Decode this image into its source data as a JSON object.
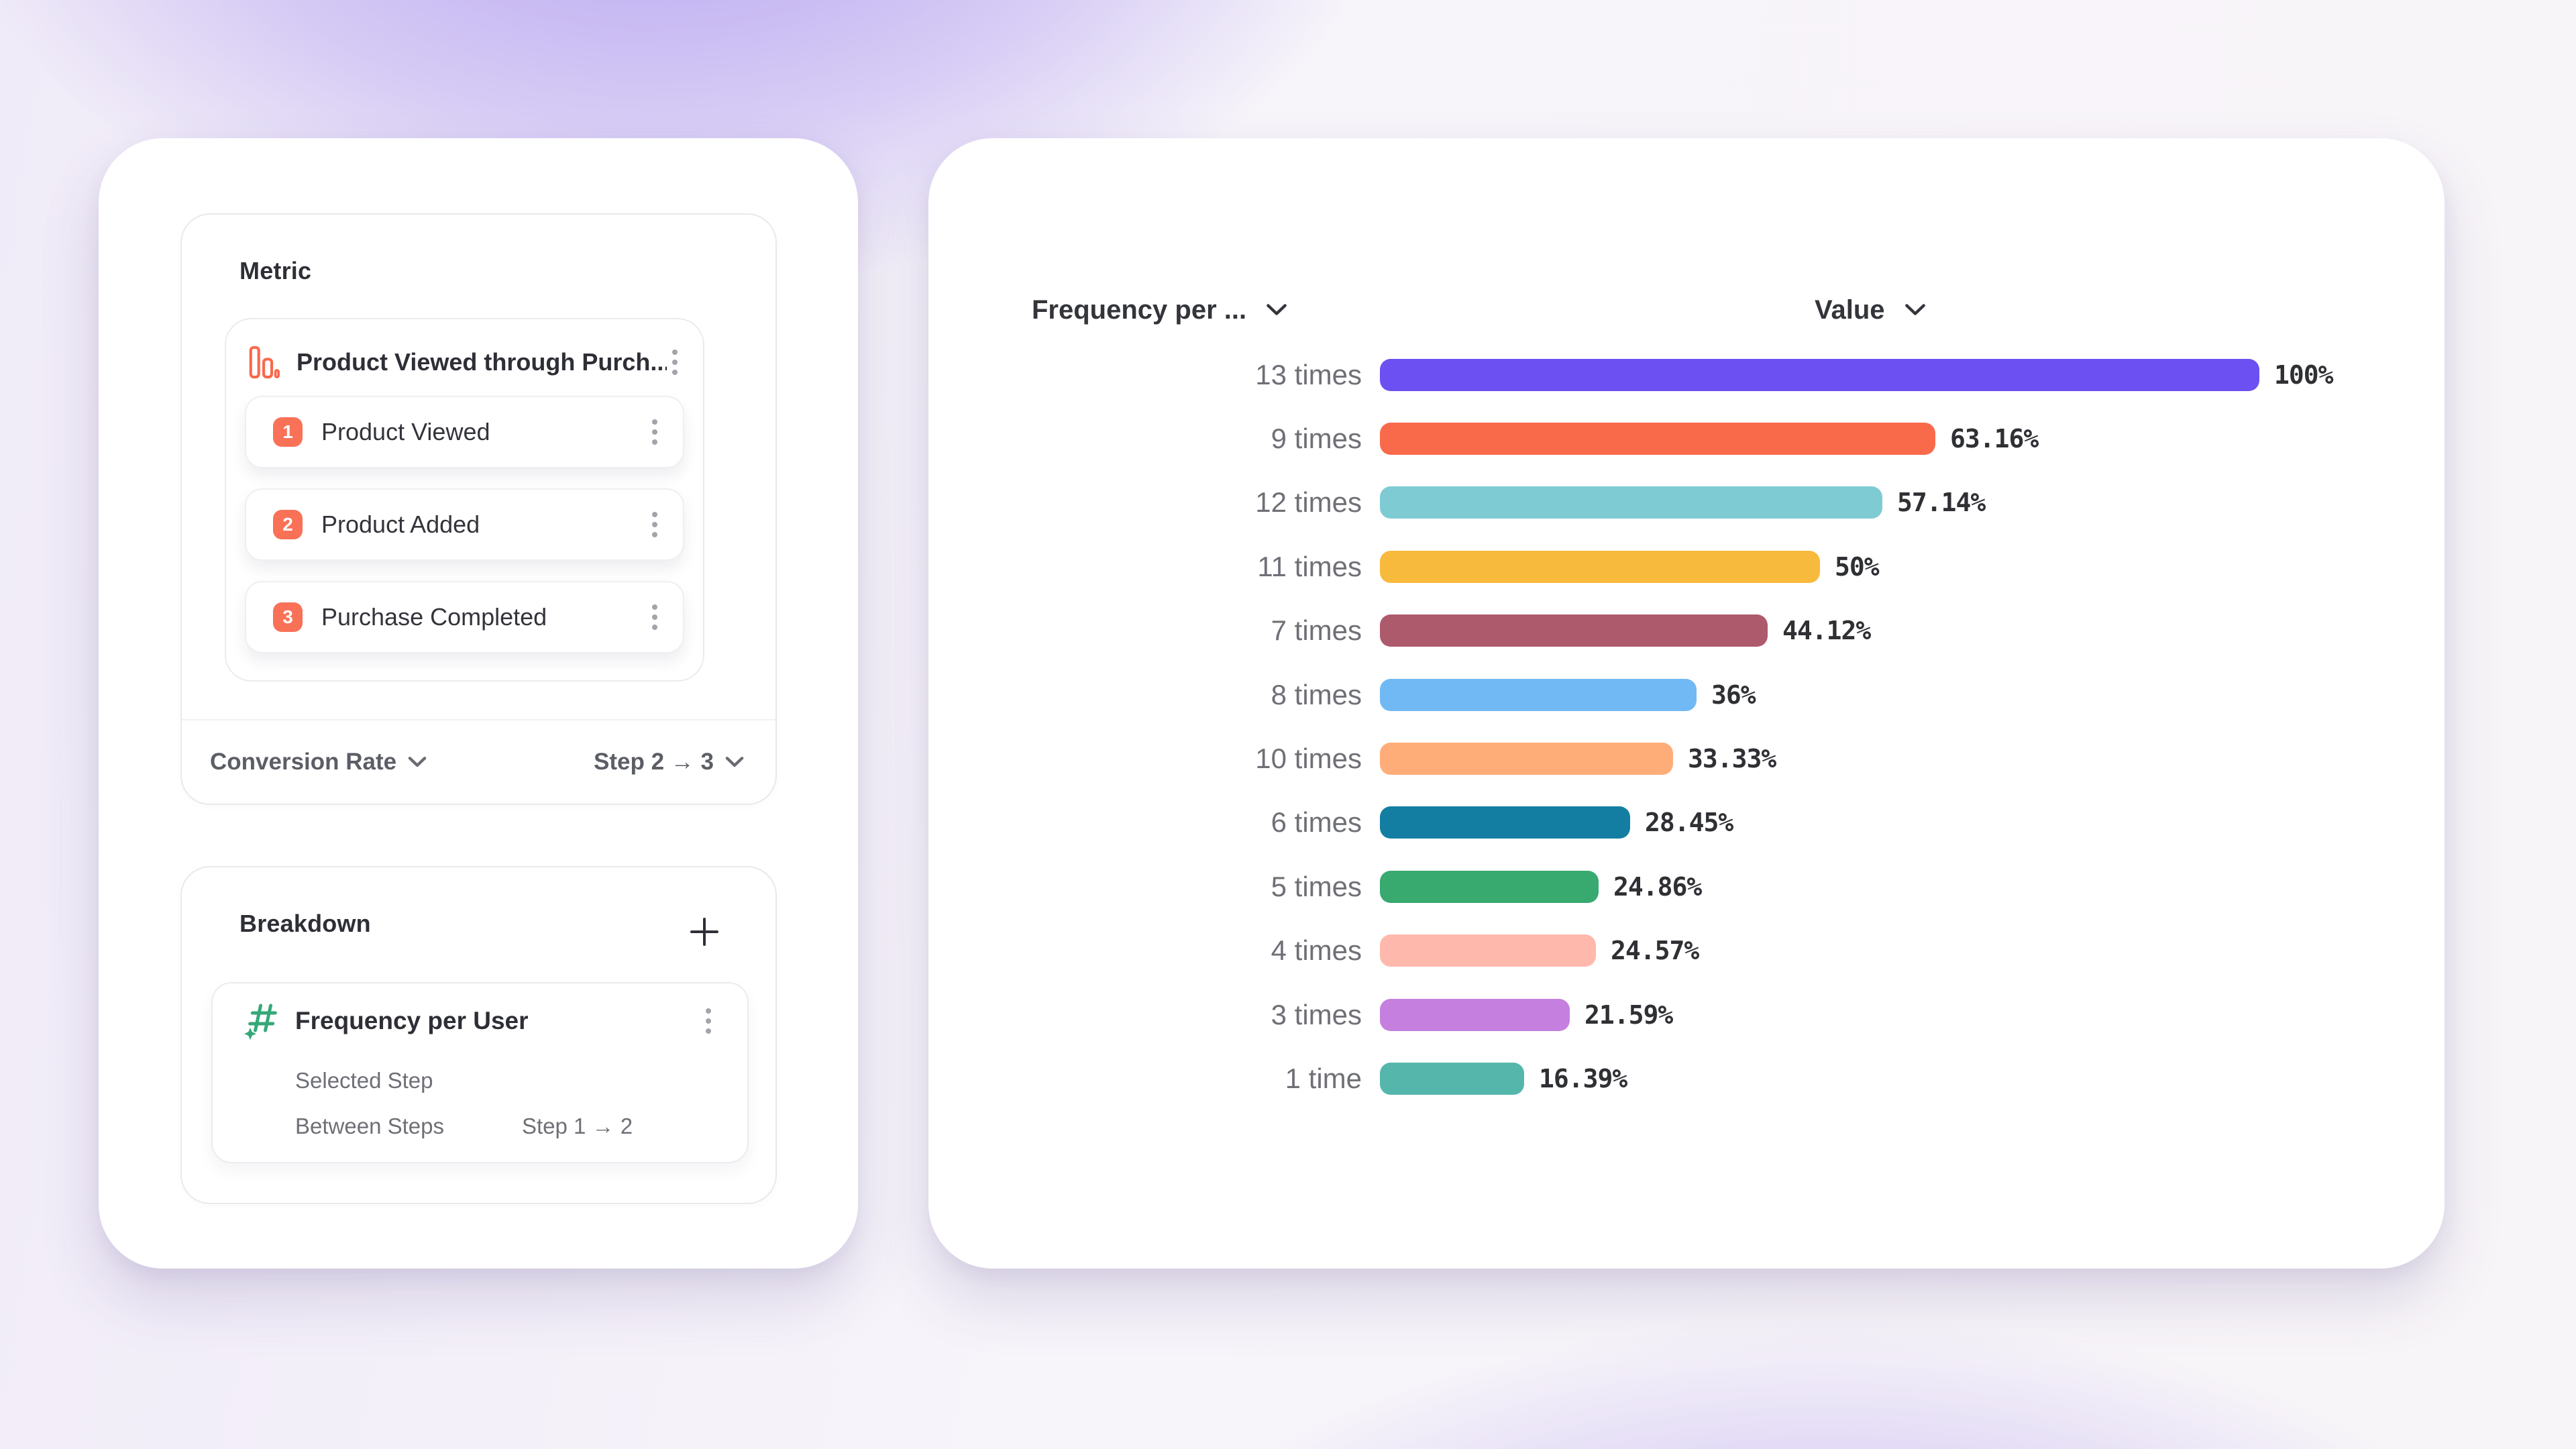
{
  "metric_panel": {
    "title": "Metric",
    "funnel": {
      "title": "Product Viewed through Purch...",
      "steps": [
        {
          "number": "1",
          "label": "Product Viewed"
        },
        {
          "number": "2",
          "label": "Product Added"
        },
        {
          "number": "3",
          "label": "Purchase Completed"
        }
      ]
    },
    "footer": {
      "measure": "Conversion Rate",
      "step_range": "Step 2 → 3"
    }
  },
  "breakdown_panel": {
    "title": "Breakdown",
    "item": {
      "name": "Frequency per User",
      "selected_step_label": "Selected Step",
      "between_steps_label": "Between Steps",
      "between_steps_value": "Step 1 → 2"
    }
  },
  "chart_header": {
    "x_header": "Frequency per ...",
    "value_header": "Value"
  },
  "chart_data": {
    "type": "bar",
    "orientation": "horizontal",
    "title": "",
    "xlabel": "Value",
    "ylabel": "Frequency per User",
    "xlim": [
      0,
      100
    ],
    "grid": false,
    "categories": [
      "13 times",
      "9 times",
      "12 times",
      "11 times",
      "7 times",
      "8 times",
      "10 times",
      "6 times",
      "5 times",
      "4 times",
      "3 times",
      "1 time"
    ],
    "values": [
      100,
      63.16,
      57.14,
      50,
      44.12,
      36,
      33.33,
      28.45,
      24.86,
      24.57,
      21.59,
      16.39
    ],
    "value_labels": [
      "100%",
      "63.16%",
      "57.14%",
      "50%",
      "44.12%",
      "36%",
      "33.33%",
      "28.45%",
      "24.86%",
      "24.57%",
      "21.59%",
      "16.39%"
    ],
    "colors": [
      "#6C50F2",
      "#F96A4B",
      "#7FCBD3",
      "#F8BA3D",
      "#AD5A6D",
      "#70B9F4",
      "#FFAD78",
      "#137EA2",
      "#38A96F",
      "#FFB8AC",
      "#C57FDE",
      "#55B7AC"
    ]
  },
  "accent_colors": {
    "step_badge": "#F97157",
    "funnel_icon": "#F9694C",
    "breakdown_icon": "#35A878"
  }
}
